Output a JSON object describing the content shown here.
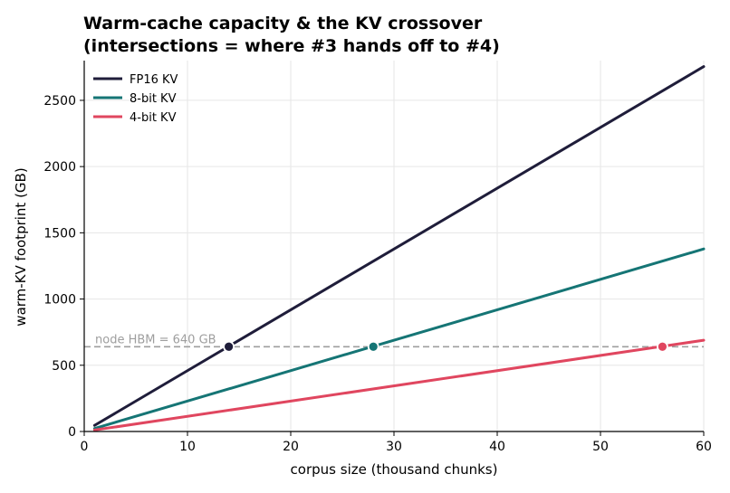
{
  "chart_data": {
    "type": "line",
    "title_lines": [
      "Warm-cache capacity & the KV crossover",
      "(intersections = where #3 hands off to #4)"
    ],
    "xlabel": "corpus size  (thousand chunks)",
    "ylabel": "warm-KV footprint  (GB)",
    "xlim": [
      0,
      60
    ],
    "ylim": [
      0,
      2800
    ],
    "xticks": [
      0,
      10,
      20,
      30,
      40,
      50,
      60
    ],
    "yticks": [
      0,
      500,
      1000,
      1500,
      2000,
      2500
    ],
    "grid": true,
    "legend_position": "top-left",
    "series": [
      {
        "name": "FP16 KV",
        "color": "#1f1d3a",
        "x": [
          1,
          60
        ],
        "values": [
          46,
          2755
        ]
      },
      {
        "name": "8-bit KV",
        "color": "#157575",
        "x": [
          1,
          60
        ],
        "values": [
          23,
          1378
        ]
      },
      {
        "name": "4-bit KV",
        "color": "#e0465f",
        "x": [
          1,
          60
        ],
        "values": [
          11,
          689
        ]
      }
    ],
    "reference_line": {
      "y": 640,
      "label": "node HBM = 640 GB",
      "color": "#9e9e9e",
      "style": "dashed"
    },
    "crossover_points": [
      {
        "series": "FP16 KV",
        "x": 14,
        "y": 640
      },
      {
        "series": "8-bit KV",
        "x": 28,
        "y": 640
      },
      {
        "series": "4-bit KV",
        "x": 56,
        "y": 640
      }
    ]
  }
}
